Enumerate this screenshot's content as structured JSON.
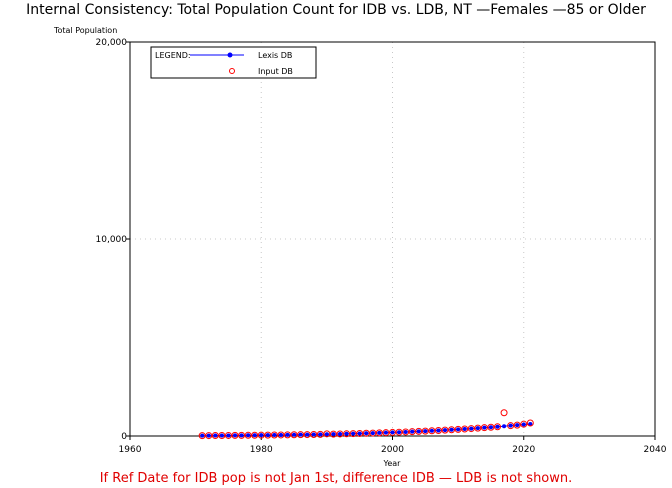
{
  "chart_data": {
    "type": "scatter",
    "title": "Internal Consistency: Total Population Count for IDB vs. LDB, NT —Females —85 or Older",
    "ylabel": "Total Population",
    "xlabel": "Year",
    "xlim": [
      1960,
      2040
    ],
    "ylim": [
      0,
      20000
    ],
    "x_ticks": [
      "1960",
      "1980",
      "2000",
      "2020",
      "2040"
    ],
    "y_ticks": [
      "0",
      "10,000",
      "20,000"
    ],
    "legend": {
      "title": "LEGEND:",
      "placement": "top-left",
      "entries": [
        {
          "label": "Lexis DB",
          "color": "#0000ff"
        },
        {
          "label": "Input DB",
          "color": "#ff0000"
        }
      ]
    },
    "series": [
      {
        "name": "Lexis DB",
        "marker": "line+dot",
        "color": "#0000ff",
        "x": [
          1971,
          1972,
          1973,
          1974,
          1975,
          1976,
          1977,
          1978,
          1979,
          1980,
          1981,
          1982,
          1983,
          1984,
          1985,
          1986,
          1987,
          1988,
          1989,
          1990,
          1991,
          1992,
          1993,
          1994,
          1995,
          1996,
          1997,
          1998,
          1999,
          2000,
          2001,
          2002,
          2003,
          2004,
          2005,
          2006,
          2007,
          2008,
          2009,
          2010,
          2011,
          2012,
          2013,
          2014,
          2015,
          2016,
          2017,
          2018,
          2019,
          2020,
          2021
        ],
        "y": [
          20,
          22,
          24,
          26,
          28,
          30,
          33,
          36,
          39,
          42,
          45,
          49,
          53,
          57,
          62,
          67,
          72,
          78,
          84,
          90,
          97,
          104,
          112,
          120,
          129,
          138,
          148,
          158,
          169,
          181,
          193,
          206,
          220,
          234,
          249,
          265,
          281,
          299,
          317,
          336,
          356,
          377,
          399,
          422,
          446,
          471,
          497,
          524,
          552,
          581,
          611
        ]
      },
      {
        "name": "Input DB",
        "marker": "open-circle",
        "color": "#ff0000",
        "x": [
          1971,
          1972,
          1973,
          1974,
          1975,
          1976,
          1977,
          1978,
          1979,
          1980,
          1981,
          1982,
          1983,
          1984,
          1985,
          1986,
          1987,
          1988,
          1989,
          1990,
          1991,
          1992,
          1993,
          1994,
          1995,
          1996,
          1997,
          1998,
          1999,
          2000,
          2001,
          2002,
          2003,
          2004,
          2005,
          2006,
          2007,
          2008,
          2009,
          2010,
          2011,
          2012,
          2013,
          2014,
          2015,
          2016,
          2017,
          2018,
          2019,
          2020,
          2021
        ],
        "y": [
          20,
          22,
          24,
          26,
          28,
          30,
          33,
          36,
          39,
          42,
          45,
          49,
          53,
          57,
          62,
          67,
          72,
          78,
          84,
          110,
          97,
          104,
          112,
          120,
          129,
          138,
          148,
          158,
          169,
          181,
          193,
          206,
          220,
          234,
          249,
          265,
          281,
          299,
          317,
          336,
          356,
          377,
          399,
          422,
          446,
          471,
          1180,
          524,
          552,
          600,
          660
        ]
      }
    ]
  },
  "footnote": "If Ref Date for IDB pop is not Jan 1st, difference IDB — LDB is not shown."
}
